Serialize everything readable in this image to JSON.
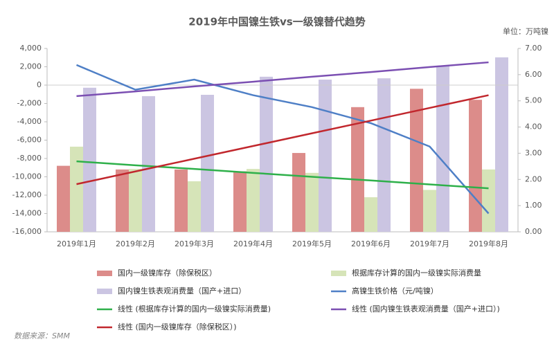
{
  "chart_data": {
    "type": "bar",
    "title": "2019年中国镍生铁vs一级镍替代趋势",
    "subtitle": "单位：万吨镍",
    "source": "数据来源：SMM",
    "categories": [
      "2019年1月",
      "2019年2月",
      "2019年3月",
      "2019年4月",
      "2019年5月",
      "2019年6月",
      "2019年7月",
      "2019年8月"
    ],
    "ylim": [
      -16000,
      4000
    ],
    "yticks": [
      {
        "value": 4000,
        "label": "4,000"
      },
      {
        "value": 2000,
        "label": "2,000"
      },
      0,
      {
        "value": -2000,
        "label": "-2,000"
      },
      {
        "value": -4000,
        "label": "-4,000"
      },
      {
        "value": -6000,
        "label": "-6,000"
      },
      {
        "value": -8000,
        "label": "-8,000"
      },
      {
        "value": -10000,
        "label": "-10,000"
      },
      {
        "value": -12000,
        "label": "-12,000"
      },
      {
        "value": -14000,
        "label": "-14,000"
      },
      {
        "value": -16000,
        "label": "-16,000"
      }
    ],
    "y2lim": [
      0,
      7
    ],
    "y2ticks": [
      {
        "value": 7,
        "label": "7.00"
      },
      {
        "value": 6,
        "label": "6.00"
      },
      {
        "value": 5,
        "label": "5.00"
      },
      {
        "value": 4,
        "label": "4.00"
      },
      {
        "value": 3,
        "label": "3.00"
      },
      {
        "value": 2,
        "label": "2.00"
      },
      {
        "value": 1,
        "label": "1.00"
      },
      {
        "value": 0,
        "label": "0.00"
      }
    ],
    "series": [
      {
        "name": "国内一级镍库存（除保税区）",
        "type": "bar",
        "color": "#dc8c8a",
        "values": [
          -8800,
          -9200,
          -9200,
          -9400,
          -7400,
          -2400,
          -400,
          -1600
        ]
      },
      {
        "name": "根据库存计算的国内一级镍实际消费量",
        "type": "bar",
        "axis": "y2",
        "color": "#d6e4b8",
        "values": [
          3.25,
          2.4,
          1.93,
          2.4,
          2.25,
          1.32,
          1.6,
          2.38
        ]
      },
      {
        "name": "国内镍生铁表观消费量（国产+进口）",
        "type": "bar",
        "axis": "y2",
        "color": "#cbc5e2",
        "values": [
          5.5,
          5.18,
          5.23,
          5.92,
          5.81,
          5.86,
          6.34,
          6.66
        ]
      },
      {
        "name": "高镍生铁价格（元/吨镍）",
        "type": "line",
        "color": "#4e7fc6",
        "values": [
          2200,
          -500,
          600,
          -1100,
          -2400,
          -4150,
          -6700,
          -14000
        ]
      },
      {
        "name": "线性 (根据库存计算的国内一级镍实际消费量)",
        "type": "line",
        "axis": "y2",
        "color": "#2eb04a",
        "values": [
          2.69,
          2.54,
          2.4,
          2.25,
          2.1,
          1.96,
          1.81,
          1.66
        ]
      },
      {
        "name": "线性 (国内镍生铁表观消费量（国产+进口）)",
        "type": "line",
        "axis": "y2",
        "color": "#7b4fb2",
        "values": [
          5.18,
          5.36,
          5.55,
          5.73,
          5.92,
          6.1,
          6.29,
          6.47
        ]
      },
      {
        "name": "线性 (国内一级镍库存（除保税区）)",
        "type": "line",
        "color": "#c1272d",
        "values": [
          -10800,
          -9414,
          -8029,
          -6643,
          -5257,
          -3871,
          -2486,
          -1100
        ]
      }
    ]
  }
}
